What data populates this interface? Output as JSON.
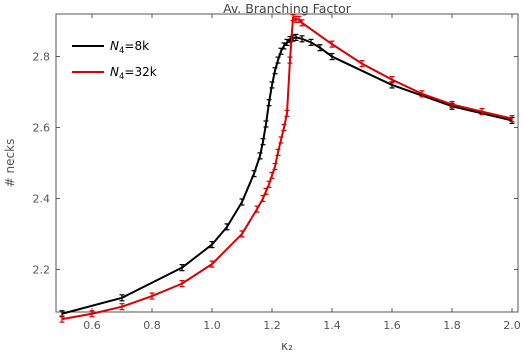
{
  "chart_data": {
    "type": "line",
    "title": "Av. Branching Factor",
    "xlabel": "κ₂",
    "ylabel": "# necks",
    "xlim": [
      0.48,
      2.02
    ],
    "ylim": [
      2.08,
      2.92
    ],
    "x_ticks": [
      0.6,
      0.8,
      1.0,
      1.2,
      1.4,
      1.6,
      1.8,
      2.0
    ],
    "x_tick_labels": [
      "0.6",
      "0.8",
      "1.0",
      "1.2",
      "1.4",
      "1.6",
      "1.8",
      "2.0"
    ],
    "y_ticks": [
      2.2,
      2.4,
      2.6,
      2.8
    ],
    "y_tick_labels": [
      "2.2",
      "2.4",
      "2.6",
      "2.8"
    ],
    "grid": false,
    "frame": true,
    "legend_position": "top-left",
    "series": [
      {
        "name_base": "N",
        "name_sub": "4",
        "name_suffix": "=8k",
        "color": "#000000",
        "points": [
          [
            0.5,
            2.075
          ],
          [
            0.7,
            2.12
          ],
          [
            0.9,
            2.205
          ],
          [
            1.0,
            2.27
          ],
          [
            1.05,
            2.32
          ],
          [
            1.1,
            2.39
          ],
          [
            1.14,
            2.47
          ],
          [
            1.16,
            2.52
          ],
          [
            1.17,
            2.56
          ],
          [
            1.18,
            2.61
          ],
          [
            1.19,
            2.67
          ],
          [
            1.2,
            2.72
          ],
          [
            1.21,
            2.76
          ],
          [
            1.22,
            2.79
          ],
          [
            1.23,
            2.815
          ],
          [
            1.24,
            2.83
          ],
          [
            1.25,
            2.84
          ],
          [
            1.26,
            2.848
          ],
          [
            1.27,
            2.852
          ],
          [
            1.28,
            2.854
          ],
          [
            1.3,
            2.85
          ],
          [
            1.33,
            2.84
          ],
          [
            1.36,
            2.825
          ],
          [
            1.4,
            2.8
          ],
          [
            1.6,
            2.72
          ],
          [
            1.8,
            2.66
          ],
          [
            2.0,
            2.62
          ]
        ]
      },
      {
        "name_base": "N",
        "name_sub": "4",
        "name_suffix": "=32k",
        "color": "#dd0000",
        "points": [
          [
            0.5,
            2.06
          ],
          [
            0.6,
            2.075
          ],
          [
            0.7,
            2.095
          ],
          [
            0.8,
            2.125
          ],
          [
            0.9,
            2.16
          ],
          [
            1.0,
            2.215
          ],
          [
            1.1,
            2.3
          ],
          [
            1.15,
            2.37
          ],
          [
            1.17,
            2.4
          ],
          [
            1.18,
            2.42
          ],
          [
            1.19,
            2.44
          ],
          [
            1.2,
            2.465
          ],
          [
            1.21,
            2.49
          ],
          [
            1.22,
            2.53
          ],
          [
            1.23,
            2.565
          ],
          [
            1.24,
            2.6
          ],
          [
            1.25,
            2.64
          ],
          [
            1.26,
            2.79
          ],
          [
            1.27,
            2.91
          ],
          [
            1.28,
            2.905
          ],
          [
            1.29,
            2.905
          ],
          [
            1.3,
            2.895
          ],
          [
            1.4,
            2.835
          ],
          [
            1.5,
            2.78
          ],
          [
            1.6,
            2.735
          ],
          [
            1.7,
            2.695
          ],
          [
            1.8,
            2.665
          ],
          [
            1.9,
            2.645
          ],
          [
            2.0,
            2.625
          ]
        ]
      }
    ]
  }
}
